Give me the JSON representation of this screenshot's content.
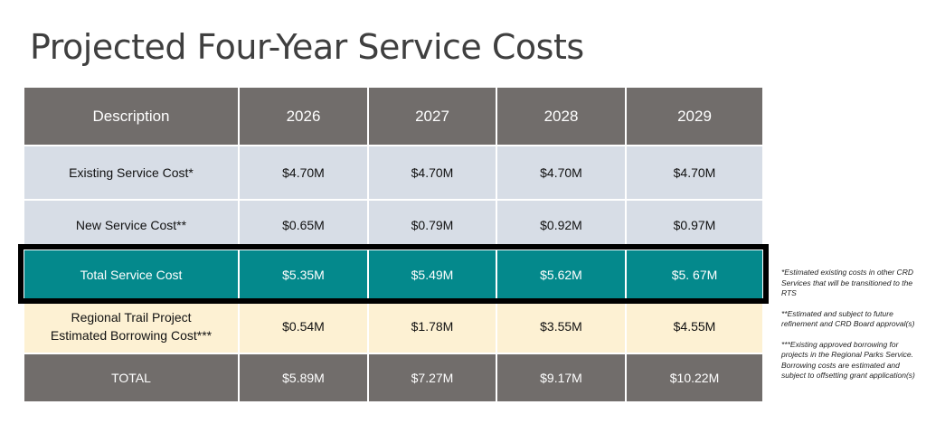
{
  "title": "Projected Four-Year Service Costs",
  "table": {
    "headers": [
      "Description",
      "2026",
      "2027",
      "2028",
      "2029"
    ],
    "rows": [
      {
        "label": "Existing Service Cost*",
        "values": [
          "$4.70M",
          "$4.70M",
          "$4.70M",
          "$4.70M"
        ]
      },
      {
        "label": "New Service Cost**",
        "values": [
          "$0.65M",
          "$0.79M",
          "$0.92M",
          "$0.97M"
        ]
      },
      {
        "label": "Total Service Cost",
        "values": [
          "$5.35M",
          "$5.49M",
          "$5.62M",
          "$5. 67M"
        ]
      },
      {
        "label_line1": "Regional Trail Project",
        "label_line2": "Estimated Borrowing Cost***",
        "values": [
          "$0.54M",
          "$1.78M",
          "$3.55M",
          "$4.55M"
        ]
      },
      {
        "label": "TOTAL",
        "values": [
          "$5.89M",
          "$7.27M",
          "$9.17M",
          "$10.22M"
        ]
      }
    ]
  },
  "footnotes": [
    "*Estimated existing costs in other CRD Services that will be transitioned to the RTS",
    "**Estimated and subject to future refinement and CRD Board approval(s)",
    "***Existing approved borrowing for projects in the Regional Parks Service. Borrowing costs are estimated and subject to offsetting grant application(s)"
  ],
  "colors": {
    "header": "#716d6b",
    "service_rows": "#d7dde6",
    "total_service": "#04898c",
    "borrowing_row": "#fdf1d3",
    "highlight_border": "#000000"
  }
}
